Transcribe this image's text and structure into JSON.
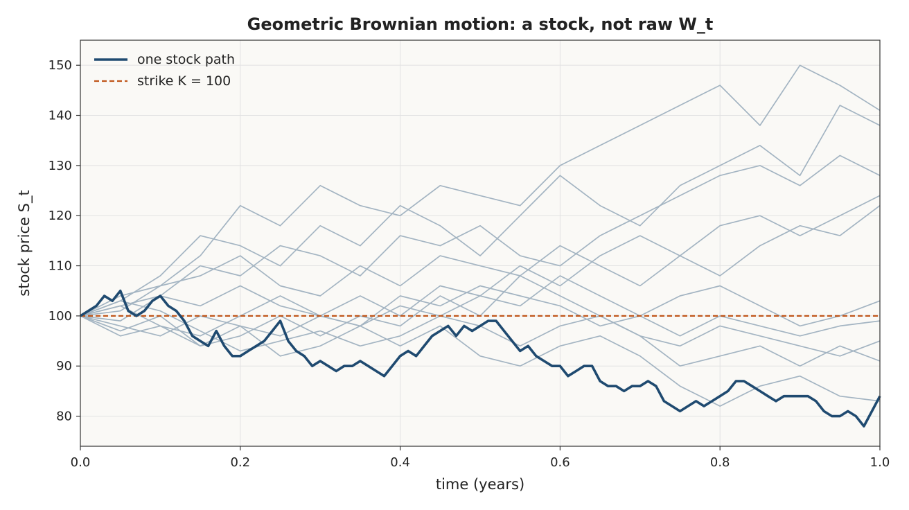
{
  "chart_data": {
    "type": "line",
    "title": "Geometric Brownian motion: a stock, not raw W_t",
    "xlabel": "time (years)",
    "ylabel": "stock price S_t",
    "xlim": [
      0,
      1
    ],
    "ylim": [
      74,
      155
    ],
    "xticks": [
      "0.0",
      "0.2",
      "0.4",
      "0.6",
      "0.8",
      "1.0"
    ],
    "yticks": [
      "80",
      "90",
      "100",
      "110",
      "120",
      "130",
      "140",
      "150"
    ],
    "grid": true,
    "legend_position": "top-left",
    "colors": {
      "highlight": "#1f4a70",
      "background_paths": "#a3b4c2",
      "strike": "#c0561a",
      "plot_background": "#faf9f6",
      "grid": "#e2e2e2"
    },
    "strike": {
      "name": "strike K = 100",
      "value": 100
    },
    "series": [
      {
        "name": "one stock path",
        "highlight": true,
        "x": [
          0,
          0.02,
          0.03,
          0.04,
          0.05,
          0.06,
          0.07,
          0.08,
          0.09,
          0.1,
          0.11,
          0.12,
          0.13,
          0.14,
          0.15,
          0.16,
          0.17,
          0.18,
          0.19,
          0.2,
          0.21,
          0.22,
          0.23,
          0.24,
          0.25,
          0.26,
          0.27,
          0.28,
          0.29,
          0.3,
          0.31,
          0.32,
          0.33,
          0.34,
          0.35,
          0.36,
          0.37,
          0.38,
          0.39,
          0.4,
          0.41,
          0.42,
          0.43,
          0.44,
          0.45,
          0.46,
          0.47,
          0.48,
          0.49,
          0.5,
          0.51,
          0.52,
          0.53,
          0.54,
          0.55,
          0.56,
          0.57,
          0.58,
          0.59,
          0.6,
          0.61,
          0.62,
          0.63,
          0.64,
          0.65,
          0.66,
          0.67,
          0.68,
          0.69,
          0.7,
          0.71,
          0.72,
          0.73,
          0.74,
          0.75,
          0.76,
          0.77,
          0.78,
          0.79,
          0.8,
          0.81,
          0.82,
          0.83,
          0.84,
          0.85,
          0.86,
          0.87,
          0.88,
          0.89,
          0.9,
          0.91,
          0.92,
          0.93,
          0.94,
          0.95,
          0.96,
          0.97,
          0.98,
          0.99,
          1.0
        ],
        "values": [
          100,
          102,
          104,
          103,
          105,
          101,
          100,
          101,
          103,
          104,
          102,
          101,
          99,
          96,
          95,
          94,
          97,
          94,
          92,
          92,
          93,
          94,
          95,
          97,
          99,
          95,
          93,
          92,
          90,
          91,
          90,
          89,
          90,
          90,
          91,
          90,
          89,
          88,
          90,
          92,
          93,
          92,
          94,
          96,
          97,
          98,
          96,
          98,
          97,
          98,
          99,
          99,
          97,
          95,
          93,
          94,
          92,
          91,
          90,
          90,
          88,
          89,
          90,
          90,
          87,
          86,
          86,
          85,
          86,
          86,
          87,
          86,
          83,
          82,
          81,
          82,
          83,
          82,
          83,
          84,
          85,
          87,
          87,
          86,
          85,
          84,
          83,
          84,
          84,
          84,
          84,
          83,
          81,
          80,
          80,
          81,
          80,
          78,
          81,
          84
        ]
      },
      {
        "name": "",
        "x": [
          0,
          0.05,
          0.1,
          0.15,
          0.2,
          0.25,
          0.3,
          0.35,
          0.4,
          0.45,
          0.5,
          0.55,
          0.6,
          0.65,
          0.7,
          0.75,
          0.8,
          0.85,
          0.9,
          0.95,
          1.0
        ],
        "values": [
          100,
          104,
          106,
          112,
          122,
          118,
          126,
          122,
          120,
          126,
          124,
          122,
          130,
          134,
          138,
          142,
          146,
          138,
          150,
          146,
          141
        ]
      },
      {
        "name": "",
        "x": [
          0,
          0.05,
          0.1,
          0.15,
          0.2,
          0.25,
          0.3,
          0.35,
          0.4,
          0.45,
          0.5,
          0.55,
          0.6,
          0.65,
          0.7,
          0.75,
          0.8,
          0.85,
          0.9,
          0.95,
          1.0
        ],
        "values": [
          100,
          103,
          108,
          116,
          114,
          110,
          118,
          114,
          122,
          118,
          112,
          120,
          128,
          122,
          118,
          126,
          130,
          134,
          128,
          142,
          138
        ]
      },
      {
        "name": "",
        "x": [
          0,
          0.05,
          0.1,
          0.15,
          0.2,
          0.25,
          0.3,
          0.35,
          0.4,
          0.45,
          0.5,
          0.55,
          0.6,
          0.65,
          0.7,
          0.75,
          0.8,
          0.85,
          0.9,
          0.95,
          1.0
        ],
        "values": [
          100,
          102,
          104,
          110,
          108,
          114,
          112,
          108,
          116,
          114,
          118,
          112,
          110,
          116,
          120,
          124,
          128,
          130,
          126,
          132,
          128
        ]
      },
      {
        "name": "",
        "x": [
          0,
          0.05,
          0.1,
          0.15,
          0.2,
          0.25,
          0.3,
          0.35,
          0.4,
          0.45,
          0.5,
          0.55,
          0.6,
          0.65,
          0.7,
          0.75,
          0.8,
          0.85,
          0.9,
          0.95,
          1.0
        ],
        "values": [
          100,
          101,
          106,
          108,
          112,
          106,
          104,
          110,
          106,
          112,
          110,
          108,
          114,
          110,
          106,
          112,
          118,
          120,
          116,
          120,
          124
        ]
      },
      {
        "name": "",
        "x": [
          0,
          0.05,
          0.1,
          0.15,
          0.2,
          0.25,
          0.3,
          0.35,
          0.4,
          0.45,
          0.5,
          0.55,
          0.6,
          0.65,
          0.7,
          0.75,
          0.8,
          0.85,
          0.9,
          0.95,
          1.0
        ],
        "values": [
          100,
          99,
          104,
          102,
          106,
          102,
          100,
          104,
          100,
          106,
          104,
          110,
          106,
          112,
          116,
          112,
          108,
          114,
          118,
          116,
          122
        ]
      },
      {
        "name": "",
        "x": [
          0,
          0.05,
          0.1,
          0.15,
          0.2,
          0.25,
          0.3,
          0.35,
          0.4,
          0.45,
          0.5,
          0.55,
          0.6,
          0.65,
          0.7,
          0.75,
          0.8,
          0.85,
          0.9,
          0.95,
          1.0
        ],
        "values": [
          100,
          98,
          96,
          100,
          98,
          96,
          100,
          98,
          102,
          100,
          104,
          102,
          108,
          104,
          100,
          104,
          106,
          102,
          98,
          100,
          103
        ]
      },
      {
        "name": "",
        "x": [
          0,
          0.05,
          0.1,
          0.15,
          0.2,
          0.25,
          0.3,
          0.35,
          0.4,
          0.45,
          0.5,
          0.55,
          0.6,
          0.65,
          0.7,
          0.75,
          0.8,
          0.85,
          0.9,
          0.95,
          1.0
        ],
        "values": [
          100,
          102,
          98,
          96,
          100,
          104,
          100,
          98,
          104,
          102,
          106,
          104,
          102,
          98,
          100,
          96,
          100,
          98,
          96,
          98,
          99
        ]
      },
      {
        "name": "",
        "x": [
          0,
          0.05,
          0.1,
          0.15,
          0.2,
          0.25,
          0.3,
          0.35,
          0.4,
          0.45,
          0.5,
          0.55,
          0.6,
          0.65,
          0.7,
          0.75,
          0.8,
          0.85,
          0.9,
          0.95,
          1.0
        ],
        "values": [
          100,
          97,
          100,
          94,
          96,
          100,
          96,
          100,
          98,
          104,
          100,
          108,
          104,
          100,
          96,
          94,
          98,
          96,
          94,
          92,
          95
        ]
      },
      {
        "name": "",
        "x": [
          0,
          0.05,
          0.1,
          0.15,
          0.2,
          0.25,
          0.3,
          0.35,
          0.4,
          0.45,
          0.5,
          0.55,
          0.6,
          0.65,
          0.7,
          0.75,
          0.8,
          0.85,
          0.9,
          0.95,
          1.0
        ],
        "values": [
          100,
          103,
          101,
          97,
          93,
          95,
          97,
          94,
          96,
          100,
          98,
          94,
          98,
          100,
          96,
          90,
          92,
          94,
          90,
          94,
          91
        ]
      },
      {
        "name": "",
        "x": [
          0,
          0.05,
          0.1,
          0.15,
          0.2,
          0.25,
          0.3,
          0.35,
          0.4,
          0.45,
          0.5,
          0.55,
          0.6,
          0.65,
          0.7,
          0.75,
          0.8,
          0.85,
          0.9,
          0.95,
          1.0
        ],
        "values": [
          100,
          96,
          98,
          94,
          98,
          92,
          94,
          98,
          94,
          98,
          92,
          90,
          94,
          96,
          92,
          86,
          82,
          86,
          88,
          84,
          83
        ]
      }
    ]
  }
}
